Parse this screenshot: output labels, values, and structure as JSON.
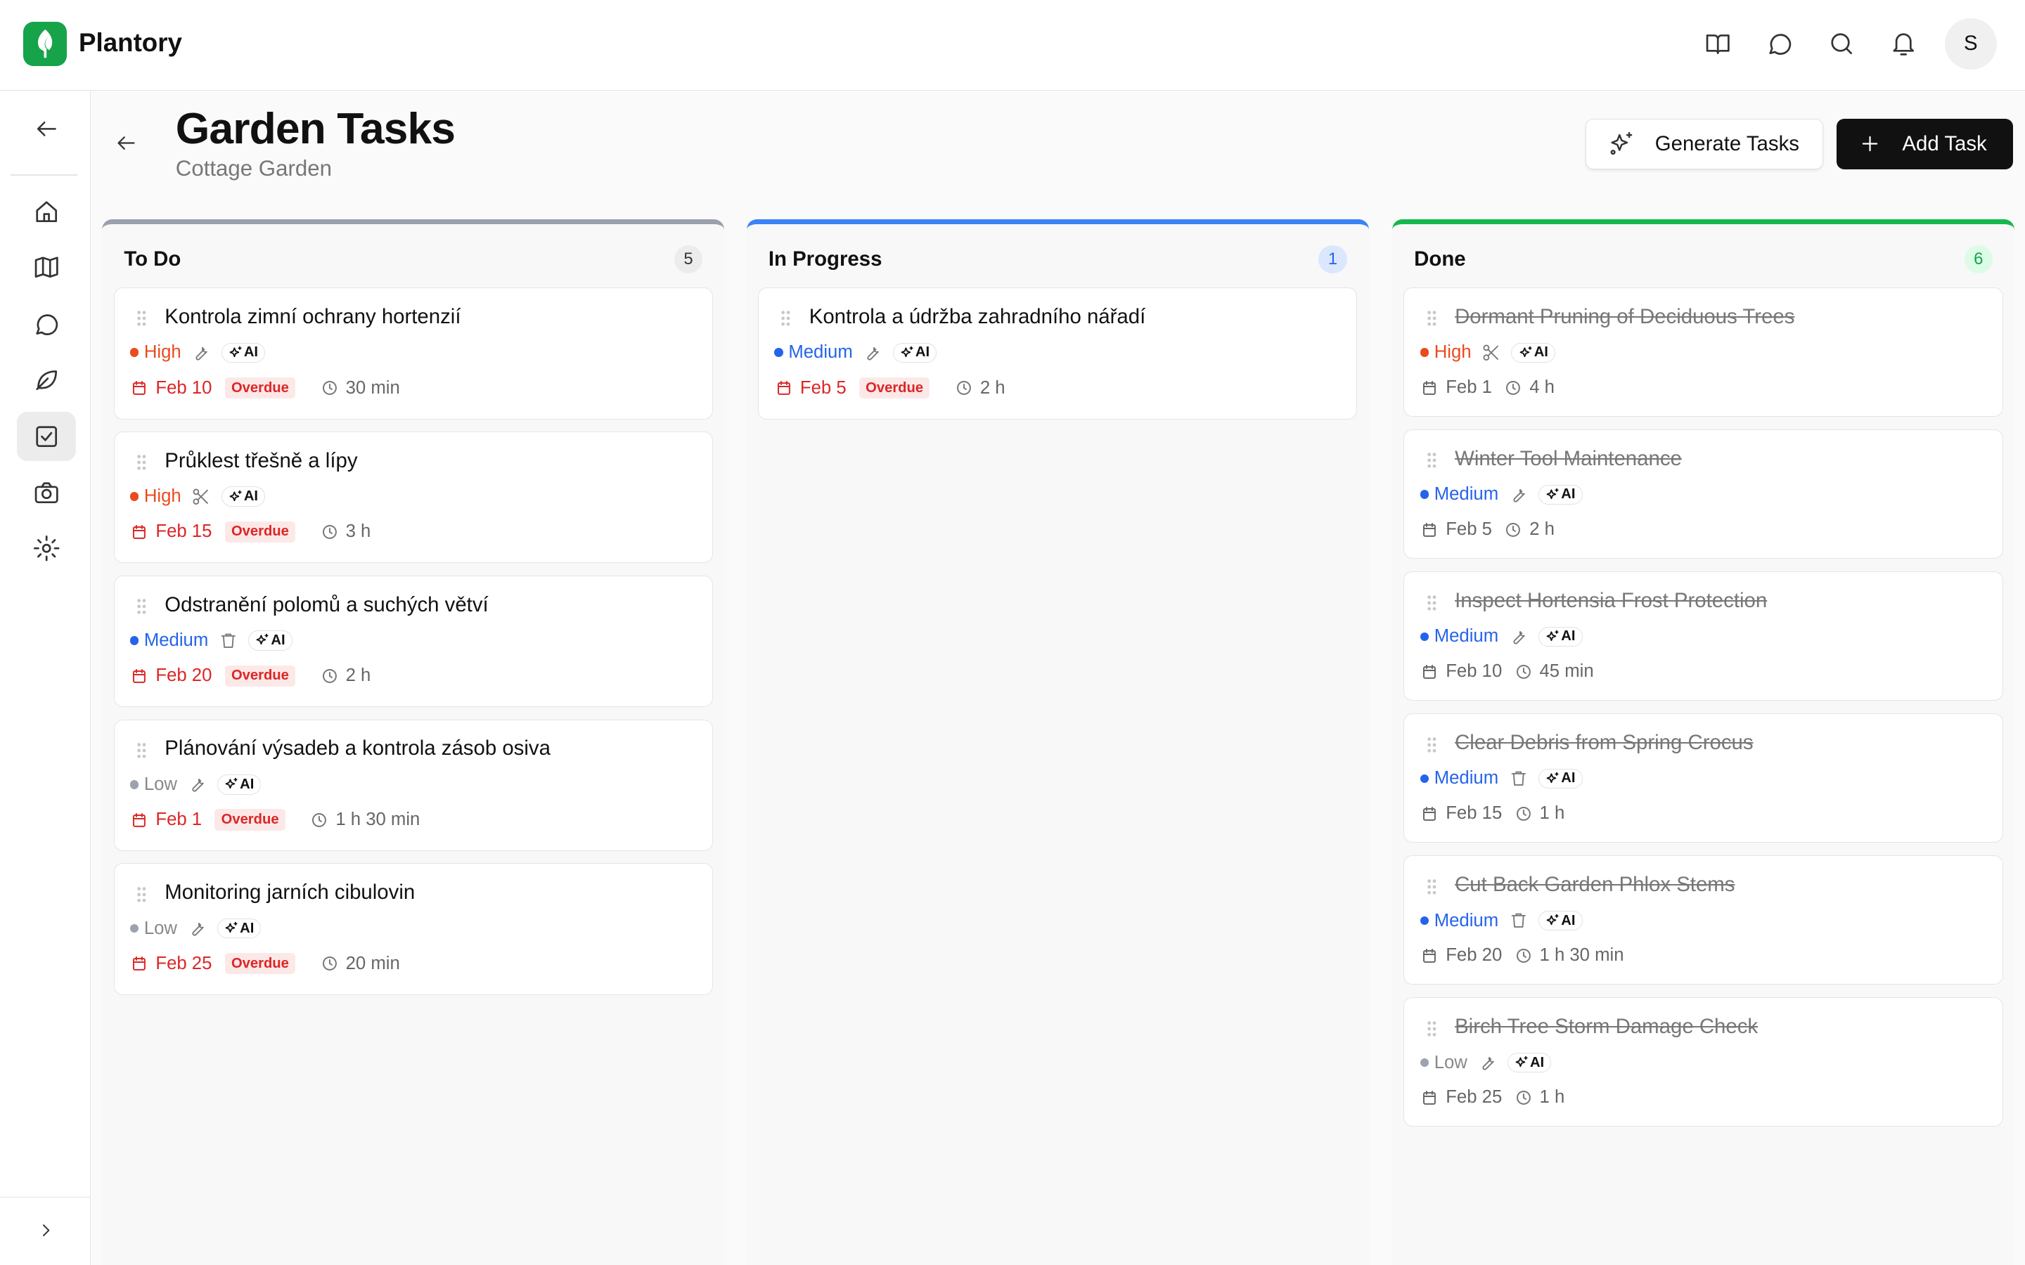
{
  "app": {
    "name": "Plantory",
    "avatar_initial": "S"
  },
  "header_icons": [
    "book-open-icon",
    "message-icon",
    "search-icon",
    "bell-icon"
  ],
  "sidebar": {
    "items": [
      {
        "icon": "home-icon"
      },
      {
        "icon": "map-icon"
      },
      {
        "icon": "message-icon"
      },
      {
        "icon": "leaf-icon"
      },
      {
        "icon": "tasks-icon",
        "active": true
      },
      {
        "icon": "camera-icon"
      },
      {
        "icon": "settings-icon"
      }
    ]
  },
  "page": {
    "title": "Garden Tasks",
    "subtitle": "Cottage Garden",
    "generate_label": "Generate Tasks",
    "add_label": "Add Task"
  },
  "colors": {
    "high": "#ea4a1f",
    "medium": "#2563eb",
    "low": "#9ca3af",
    "todo": "#9aa1ad",
    "progress": "#3b82f6",
    "done": "#16b84e",
    "overdue": "#dc2626"
  },
  "columns": [
    {
      "title": "To Do",
      "count": "5",
      "tasks": [
        {
          "title": "Kontrola zimní ochrany hortenzií",
          "priority": "High",
          "tool": "wrench",
          "ai": "AI",
          "date": "Feb 10",
          "overdue": "Overdue",
          "duration": "30 min"
        },
        {
          "title": "Průklest třešně a lípy",
          "priority": "High",
          "tool": "scissors",
          "ai": "AI",
          "date": "Feb 15",
          "overdue": "Overdue",
          "duration": "3 h"
        },
        {
          "title": "Odstranění polomů a suchých větví",
          "priority": "Medium",
          "tool": "trash",
          "ai": "AI",
          "date": "Feb 20",
          "overdue": "Overdue",
          "duration": "2 h"
        },
        {
          "title": "Plánování výsadeb a kontrola zásob osiva",
          "priority": "Low",
          "tool": "wrench",
          "ai": "AI",
          "date": "Feb 1",
          "overdue": "Overdue",
          "duration": "1 h 30 min"
        },
        {
          "title": "Monitoring jarních cibulovin",
          "priority": "Low",
          "tool": "wrench",
          "ai": "AI",
          "date": "Feb 25",
          "overdue": "Overdue",
          "duration": "20 min"
        }
      ]
    },
    {
      "title": "In Progress",
      "count": "1",
      "tasks": [
        {
          "title": "Kontrola a údržba zahradního nářadí",
          "priority": "Medium",
          "tool": "wrench",
          "ai": "AI",
          "date": "Feb 5",
          "overdue": "Overdue",
          "duration": "2 h"
        }
      ]
    },
    {
      "title": "Done",
      "count": "6",
      "tasks": [
        {
          "title": "Dormant Pruning of Deciduous Trees",
          "priority": "High",
          "tool": "scissors",
          "ai": "AI",
          "date": "Feb 1",
          "duration": "4 h"
        },
        {
          "title": "Winter Tool Maintenance",
          "priority": "Medium",
          "tool": "wrench",
          "ai": "AI",
          "date": "Feb 5",
          "duration": "2 h"
        },
        {
          "title": "Inspect Hortensia Frost Protection",
          "priority": "Medium",
          "tool": "wrench",
          "ai": "AI",
          "date": "Feb 10",
          "duration": "45 min"
        },
        {
          "title": "Clear Debris from Spring Crocus",
          "priority": "Medium",
          "tool": "trash",
          "ai": "AI",
          "date": "Feb 15",
          "duration": "1 h"
        },
        {
          "title": "Cut Back Garden Phlox Stems",
          "priority": "Medium",
          "tool": "trash",
          "ai": "AI",
          "date": "Feb 20",
          "duration": "1 h 30 min"
        },
        {
          "title": "Birch Tree Storm Damage Check",
          "priority": "Low",
          "tool": "wrench",
          "ai": "AI",
          "date": "Feb 25",
          "duration": "1 h"
        }
      ]
    }
  ]
}
